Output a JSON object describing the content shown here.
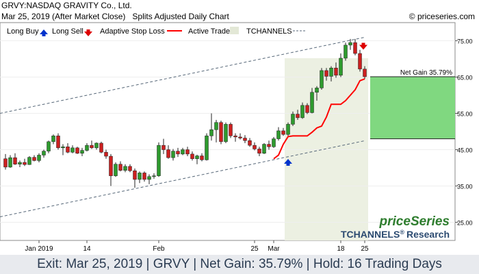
{
  "header": {
    "title": "GRVY:NASDAQ GRAVITY Co., Ltd.",
    "date_line": "Mar 25, 2019 (After Market Close)",
    "chart_kind": "Splits Adjusted Daily Chart",
    "copyright": "© priceseries.com"
  },
  "legend": {
    "long_buy": "Long Buy",
    "long_sell": "Long Sell",
    "stop_loss": "Adaptive Stop Loss",
    "active_trade": "Active Trade",
    "tchannels": "TCHANNELS"
  },
  "colors": {
    "up": "#2e9a2e",
    "down": "#cc2020",
    "stop": "#ff0000",
    "buy_arrow": "#0033cc",
    "sell_arrow": "#dd0000",
    "active_zone": "#ecf0e2",
    "gain_box": "#80d880",
    "channel": "#556677",
    "footer_text": "#2b3c52"
  },
  "watermark": {
    "brand": "priceSeries",
    "research": "TCHANNELS",
    "reg": "®",
    "research_suffix": "Research"
  },
  "footer": {
    "text": "Exit: Mar 25, 2019 | GRVY | Net Gain: 35.79% | Hold: 16 Trading Days"
  },
  "chart_data": {
    "type": "candlestick",
    "ylim": [
      20,
      80
    ],
    "yticks": [
      25,
      35,
      45,
      55,
      65,
      75
    ],
    "ytick_labels": [
      "25.00",
      "35.00",
      "45.00",
      "55.00",
      "65.00",
      "75.00"
    ],
    "xticks": [
      {
        "label": "Jan 2019",
        "index": 7
      },
      {
        "label": "14",
        "index": 17
      },
      {
        "label": "Feb",
        "index": 32
      },
      {
        "label": "25",
        "index": 52
      },
      {
        "label": "Mar",
        "index": 56
      },
      {
        "label": "18",
        "index": 70
      },
      {
        "label": "25",
        "index": 75
      }
    ],
    "n_bars": 76,
    "candles": [
      [
        42.5,
        43.8,
        39.5,
        40.2
      ],
      [
        40.2,
        43.5,
        40.0,
        42.8
      ],
      [
        42.8,
        44.0,
        40.8,
        41.0
      ],
      [
        41.0,
        42.0,
        40.2,
        41.5
      ],
      [
        41.5,
        42.5,
        40.5,
        40.9
      ],
      [
        40.9,
        43.2,
        40.8,
        42.9
      ],
      [
        42.9,
        43.5,
        41.8,
        42.0
      ],
      [
        42.0,
        44.0,
        41.5,
        43.5
      ],
      [
        43.5,
        45.0,
        42.8,
        44.6
      ],
      [
        44.6,
        47.5,
        44.0,
        47.2
      ],
      [
        47.2,
        49.2,
        46.5,
        48.8
      ],
      [
        48.8,
        49.5,
        45.0,
        45.5
      ],
      [
        45.5,
        46.5,
        43.5,
        45.8
      ],
      [
        45.8,
        46.8,
        44.0,
        44.3
      ],
      [
        44.3,
        46.2,
        44.0,
        45.5
      ],
      [
        45.5,
        45.8,
        43.8,
        44.0
      ],
      [
        44.0,
        45.5,
        43.2,
        44.8
      ],
      [
        44.8,
        46.8,
        44.5,
        46.2
      ],
      [
        46.2,
        47.5,
        45.2,
        45.5
      ],
      [
        45.5,
        47.0,
        45.0,
        46.8
      ],
      [
        46.8,
        47.2,
        44.0,
        44.3
      ],
      [
        44.3,
        45.0,
        42.5,
        43.2
      ],
      [
        43.2,
        43.8,
        35.0,
        37.8
      ],
      [
        37.8,
        41.5,
        37.5,
        41.0
      ],
      [
        41.0,
        41.8,
        39.0,
        39.3
      ],
      [
        39.3,
        41.0,
        38.8,
        40.4
      ],
      [
        40.4,
        41.0,
        38.8,
        39.2
      ],
      [
        39.2,
        39.8,
        34.5,
        36.8
      ],
      [
        36.8,
        39.0,
        35.8,
        38.6
      ],
      [
        38.6,
        39.0,
        36.2,
        36.8
      ],
      [
        36.8,
        38.2,
        35.5,
        37.6
      ],
      [
        37.6,
        38.5,
        37.0,
        37.8
      ],
      [
        37.8,
        47.0,
        37.5,
        46.2
      ],
      [
        46.2,
        48.0,
        43.8,
        45.0
      ],
      [
        45.0,
        46.2,
        42.5,
        42.8
      ],
      [
        42.8,
        45.2,
        42.0,
        44.6
      ],
      [
        44.6,
        45.5,
        43.0,
        43.8
      ],
      [
        43.8,
        45.5,
        43.5,
        45.0
      ],
      [
        45.0,
        45.8,
        43.2,
        43.8
      ],
      [
        43.8,
        44.5,
        42.0,
        42.5
      ],
      [
        42.5,
        43.6,
        41.0,
        43.3
      ],
      [
        43.3,
        44.0,
        41.8,
        42.2
      ],
      [
        42.2,
        49.5,
        42.0,
        48.8
      ],
      [
        48.8,
        55.0,
        47.5,
        50.5
      ],
      [
        50.5,
        53.2,
        47.0,
        52.5
      ],
      [
        52.5,
        53.0,
        46.5,
        47.2
      ],
      [
        47.2,
        52.5,
        46.8,
        52.0
      ],
      [
        52.0,
        52.5,
        48.2,
        48.8
      ],
      [
        48.8,
        49.5,
        47.2,
        48.5
      ],
      [
        48.5,
        49.5,
        47.8,
        48.2
      ],
      [
        48.2,
        49.0,
        46.8,
        47.5
      ],
      [
        47.5,
        48.2,
        45.8,
        46.2
      ],
      [
        46.2,
        47.0,
        44.8,
        45.2
      ],
      [
        45.2,
        45.8,
        43.2,
        44.0
      ],
      [
        44.0,
        46.8,
        43.8,
        46.5
      ],
      [
        46.5,
        47.5,
        45.0,
        45.8
      ],
      [
        45.8,
        48.5,
        45.5,
        48.0
      ],
      [
        48.0,
        51.2,
        47.5,
        50.2
      ],
      [
        50.2,
        51.0,
        48.8,
        49.2
      ],
      [
        49.2,
        52.5,
        48.8,
        52.0
      ],
      [
        52.0,
        55.5,
        51.5,
        54.8
      ],
      [
        54.8,
        56.0,
        53.2,
        53.8
      ],
      [
        53.8,
        58.0,
        53.5,
        57.2
      ],
      [
        57.2,
        57.8,
        54.8,
        55.2
      ],
      [
        55.2,
        62.0,
        55.0,
        60.8
      ],
      [
        60.8,
        62.5,
        58.5,
        62.0
      ],
      [
        62.0,
        67.5,
        61.5,
        66.8
      ],
      [
        66.8,
        67.5,
        64.0,
        65.2
      ],
      [
        65.2,
        68.0,
        63.8,
        67.5
      ],
      [
        67.5,
        69.0,
        64.8,
        65.5
      ],
      [
        65.5,
        71.5,
        65.0,
        70.2
      ],
      [
        70.2,
        74.5,
        69.5,
        73.8
      ],
      [
        73.8,
        75.5,
        72.5,
        74.5
      ],
      [
        74.5,
        75.5,
        71.0,
        71.5
      ],
      [
        71.5,
        72.5,
        66.5,
        67.2
      ],
      [
        67.2,
        68.0,
        64.5,
        65.1
      ]
    ],
    "stop_loss": [
      {
        "i": 56,
        "v": 42.5
      },
      {
        "i": 57,
        "v": 43.5
      },
      {
        "i": 58,
        "v": 46.5
      },
      {
        "i": 59,
        "v": 48.6
      },
      {
        "i": 60,
        "v": 48.8
      },
      {
        "i": 61,
        "v": 48.8
      },
      {
        "i": 62,
        "v": 48.8
      },
      {
        "i": 63,
        "v": 48.8
      },
      {
        "i": 64,
        "v": 49.8
      },
      {
        "i": 65,
        "v": 51.0
      },
      {
        "i": 66,
        "v": 51.5
      },
      {
        "i": 67,
        "v": 54.0
      },
      {
        "i": 68,
        "v": 57.5
      },
      {
        "i": 69,
        "v": 57.5
      },
      {
        "i": 70,
        "v": 57.5
      },
      {
        "i": 71,
        "v": 58.5
      },
      {
        "i": 72,
        "v": 60.0
      },
      {
        "i": 73,
        "v": 61.5
      },
      {
        "i": 74,
        "v": 64.0
      },
      {
        "i": 75,
        "v": 64.5
      }
    ],
    "channel_upper": [
      {
        "i": 0,
        "v": 55.0
      },
      {
        "i": 75,
        "v": 76.0
      }
    ],
    "channel_lower": [
      {
        "i": 0,
        "v": 26.5
      },
      {
        "i": 75,
        "v": 47.5
      }
    ],
    "active_trade": {
      "start": 59,
      "end": 75
    },
    "buy": {
      "i": 59,
      "v": 41.5
    },
    "sell": {
      "i": 75,
      "v": 73.5
    },
    "net_gain": {
      "label": "Net Gain 35.79%",
      "entry": 48.0,
      "exit": 65.1
    }
  }
}
